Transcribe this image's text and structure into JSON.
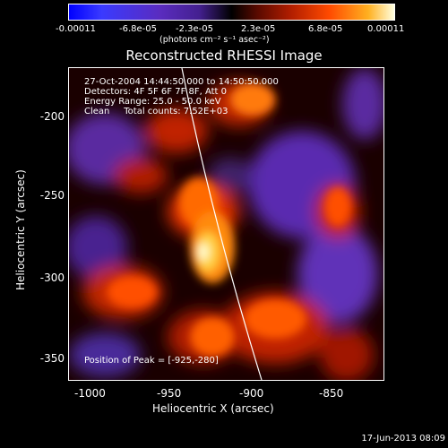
{
  "colorbar": {
    "ticks": [
      "-0.00011",
      "-6.8e-05",
      "-2.3e-05",
      "2.3e-05",
      "6.8e-05",
      "0.00011"
    ],
    "unit": "(photons cm⁻² s⁻¹ asec⁻²)"
  },
  "title": "Reconstructed RHESSI Image",
  "info": {
    "line1": "27-Oct-2004 14:44:50.000 to 14:50:50.000",
    "line2": "Detectors: 4F 5F 6F 7F 8F, Att 0",
    "line3": "Energy Range: 25.0 - 50.0 keV",
    "line4": "Clean     Total counts: 7.52E+03"
  },
  "peak": "Position of Peak = [-925,-280]",
  "axes": {
    "ylabel": "Heliocentric Y (arcsec)",
    "xlabel": "Heliocentric X (arcsec)",
    "yticks": [
      "-200",
      "-250",
      "-300",
      "-350"
    ],
    "xticks": [
      "-1000",
      "-950",
      "-900",
      "-850"
    ]
  },
  "footer_date": "17-Jun-2013 08:09",
  "colors": {
    "background": "#000000",
    "foreground": "#ffffff"
  }
}
